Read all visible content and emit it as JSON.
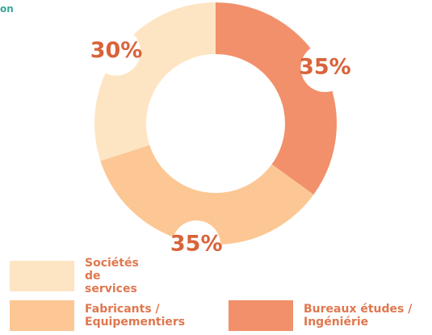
{
  "chart_data": {
    "type": "pie",
    "caption": "on",
    "categories": [
      "Bureaux études / Ingéniérie",
      "Fabricants / Equipementiers",
      "Sociétés de services"
    ],
    "values": [
      35,
      35,
      30
    ],
    "value_labels": [
      "35%",
      "35%",
      "30%"
    ],
    "colors": [
      "#f1906b",
      "#fcc794",
      "#fde5c4"
    ],
    "donut": true
  }
}
